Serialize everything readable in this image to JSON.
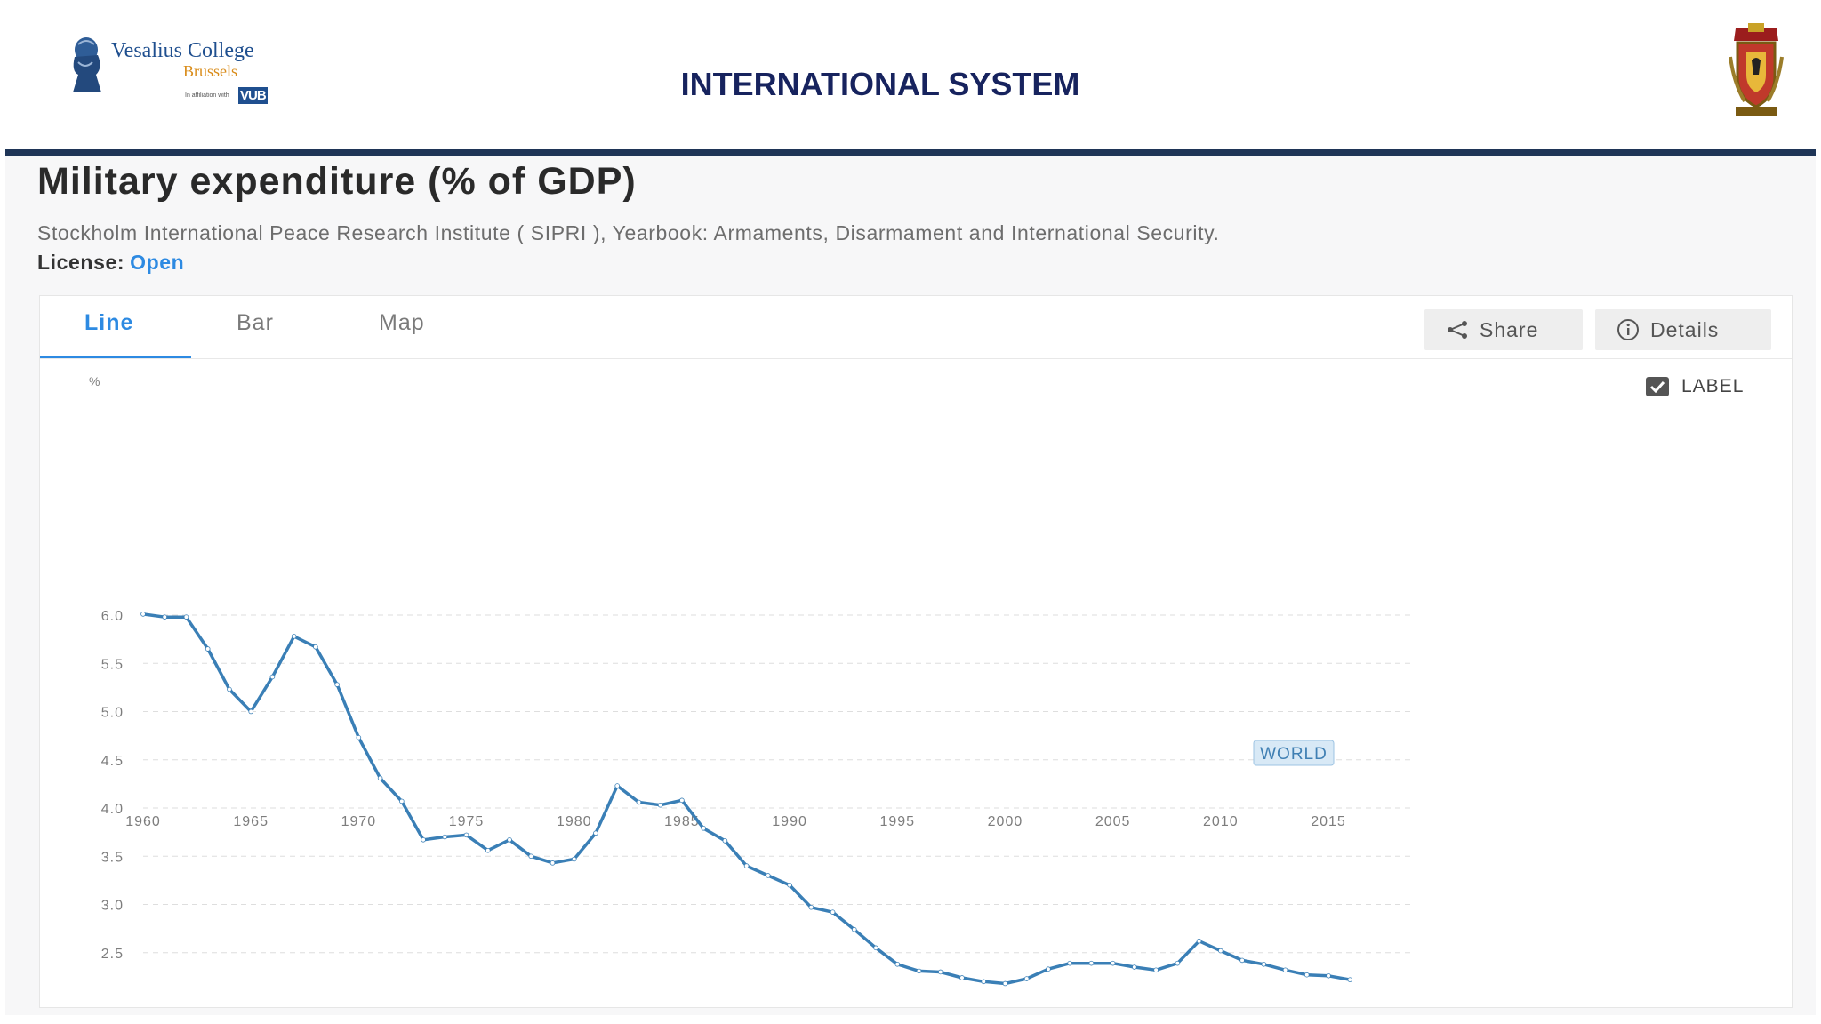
{
  "slide": {
    "title": "INTERNATIONAL SYSTEM",
    "logo": {
      "name": "Vesalius College",
      "sub": "Brussels",
      "affiliation": "In affiliation with",
      "badge": "VUB"
    }
  },
  "indicator": {
    "title": "Military expenditure (% of GDP)",
    "source": "Stockholm International Peace Research Institute ( SIPRI ), Yearbook: Armaments, Disarmament and International Security.",
    "license_label": "License:",
    "license_value": "Open"
  },
  "tabs": [
    {
      "label": "Line",
      "active": true
    },
    {
      "label": "Bar",
      "active": false
    },
    {
      "label": "Map",
      "active": false
    }
  ],
  "toolbar": {
    "share_label": "Share",
    "details_label": "Details"
  },
  "label_toggle": {
    "label": "LABEL",
    "checked": true
  },
  "colors": {
    "accent": "#2d8ae2",
    "series": "#3a7fb6",
    "header_rule": "#1f3557",
    "slide_title": "#17235e"
  },
  "chart_data": {
    "type": "line",
    "unit_label": "%",
    "ylim": [
      2.1,
      6.0
    ],
    "yticks": [
      2.5,
      3.0,
      3.5,
      4.0,
      4.5,
      5.0,
      5.5,
      6.0
    ],
    "xlim": [
      1960,
      2016
    ],
    "xticks": [
      1960,
      1965,
      1970,
      1975,
      1980,
      1985,
      1990,
      1995,
      2000,
      2005,
      2010,
      2015
    ],
    "grid": true,
    "series": [
      {
        "name": "WORLD",
        "x": [
          1960,
          1961,
          1962,
          1963,
          1964,
          1965,
          1966,
          1967,
          1968,
          1969,
          1970,
          1971,
          1972,
          1973,
          1974,
          1975,
          1976,
          1977,
          1978,
          1979,
          1980,
          1981,
          1982,
          1983,
          1984,
          1985,
          1986,
          1987,
          1988,
          1989,
          1990,
          1991,
          1992,
          1993,
          1994,
          1995,
          1996,
          1997,
          1998,
          1999,
          2000,
          2001,
          2002,
          2003,
          2004,
          2005,
          2006,
          2007,
          2008,
          2009,
          2010,
          2011,
          2012,
          2013,
          2014,
          2015,
          2016
        ],
        "values": [
          6.01,
          5.98,
          5.98,
          5.65,
          5.23,
          5.0,
          5.36,
          5.78,
          5.67,
          5.28,
          4.73,
          4.31,
          4.07,
          3.67,
          3.7,
          3.72,
          3.56,
          3.67,
          3.5,
          3.43,
          3.47,
          3.74,
          4.23,
          4.06,
          4.03,
          4.08,
          3.79,
          3.66,
          3.4,
          3.3,
          3.2,
          2.97,
          2.92,
          2.74,
          2.55,
          2.38,
          2.31,
          2.3,
          2.24,
          2.2,
          2.18,
          2.23,
          2.33,
          2.39,
          2.39,
          2.39,
          2.35,
          2.32,
          2.39,
          2.62,
          2.52,
          2.42,
          2.38,
          2.32,
          2.27,
          2.26,
          2.22
        ]
      }
    ]
  }
}
